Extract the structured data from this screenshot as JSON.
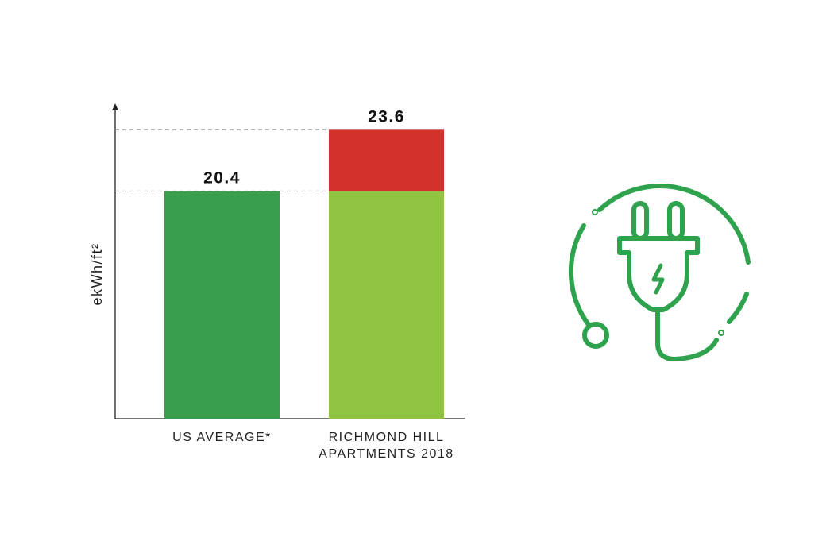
{
  "chart_data": {
    "type": "bar",
    "axis_label": "ekWh/ft²",
    "categories": [
      "US AVERAGE*",
      "RICHMOND HILL APARTMENTS 2018"
    ],
    "values": [
      20.4,
      23.6
    ],
    "colors": [
      "#3a9f4d",
      "#92c443"
    ],
    "excess_color": "#d3322c",
    "ylim": [
      8.5,
      24.9
    ]
  }
}
